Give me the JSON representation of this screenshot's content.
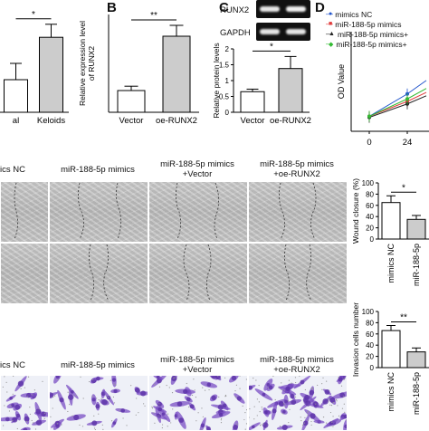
{
  "panels": {
    "A": {
      "letter": ""
    },
    "B": {
      "letter": "B"
    },
    "C": {
      "letter": "C"
    },
    "D": {
      "letter": "D"
    }
  },
  "blot": {
    "labels": [
      "RUNX2",
      "GAPDH"
    ]
  },
  "legend": [
    "mimics NC",
    "miR-188-5p mimics",
    "miR-188-5p mimics+",
    "miR-188-5p mimics+"
  ],
  "legend_colors": [
    "#2255cc",
    "#e03a3a",
    "#222222",
    "#33bb33"
  ],
  "row_titles_1": [
    "ics NC",
    "miR-188-5p mimics",
    "miR-188-5p mimics\n+Vector",
    "miR-188-5p mimics\n+oe-RUNX2"
  ],
  "row_titles_2": [
    "ics NC",
    "miR-188-5p mimics",
    "miR-188-5p mimics\n+Vector",
    "miR-188-5p mimics\n+oe-RUNX2"
  ],
  "chart_data": [
    {
      "type": "bar",
      "panel": "A",
      "categories": [
        "al",
        "Keloids"
      ],
      "values": [
        1.0,
        2.3
      ],
      "errors": [
        0.5,
        0.4
      ],
      "ylim": [
        0,
        3.0
      ],
      "significance": "*"
    },
    {
      "type": "bar",
      "panel": "B",
      "categories": [
        "Vector",
        "oe-RUNX2"
      ],
      "values": [
        1.0,
        3.5
      ],
      "errors": [
        0.2,
        0.5
      ],
      "ylim": [
        0,
        4.5
      ],
      "ylabel": "Relative expression level\nof RUNX2",
      "significance": "**"
    },
    {
      "type": "bar",
      "panel": "C",
      "categories": [
        "Vector",
        "oe-RUNX2"
      ],
      "values": [
        0.65,
        1.38
      ],
      "errors": [
        0.08,
        0.38
      ],
      "ylim": [
        0,
        2.0
      ],
      "yticks": [
        0.0,
        0.5,
        1.0,
        1.5,
        2.0
      ],
      "ylabel": "Relative protein levels",
      "significance": "*"
    },
    {
      "type": "line",
      "panel": "D",
      "x": [
        0,
        24
      ],
      "xticks": [
        "0",
        "24"
      ],
      "ylabel": "OD Value",
      "ylim": [
        0,
        2.0
      ],
      "series": [
        {
          "name": "mimics NC",
          "values": [
            0.3,
            0.75
          ]
        },
        {
          "name": "miR-188-5p mimics",
          "values": [
            0.3,
            0.6
          ]
        },
        {
          "name": "miR-188-5p mimics+",
          "values": [
            0.28,
            0.55
          ]
        },
        {
          "name": "miR-188-5p mimics+",
          "values": [
            0.3,
            0.65
          ]
        }
      ]
    },
    {
      "type": "bar",
      "panel": "wound",
      "categories": [
        "mimics NC",
        "miR-188-5p"
      ],
      "values": [
        65,
        35
      ],
      "errors": [
        12,
        7
      ],
      "ylim": [
        0,
        100
      ],
      "yticks": [
        0,
        20,
        40,
        60,
        80,
        100
      ],
      "ylabel": "Wound closure (%)",
      "significance": "*"
    },
    {
      "type": "bar",
      "panel": "invasion",
      "categories": [
        "mimics NC",
        "miR-188-5p"
      ],
      "values": [
        66,
        28
      ],
      "errors": [
        9,
        7
      ],
      "ylim": [
        0,
        100
      ],
      "yticks": [
        0,
        20,
        40,
        60,
        80,
        100
      ],
      "ylabel": "Invasion cells number",
      "significance": "**"
    }
  ]
}
